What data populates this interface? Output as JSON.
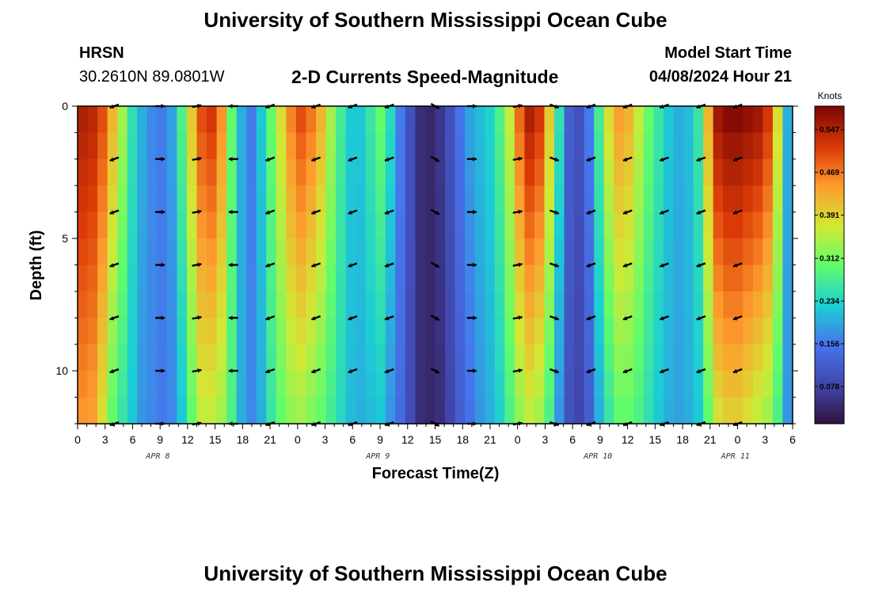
{
  "header": {
    "title": "University of Southern Mississippi Ocean Cube",
    "station": "HRSN",
    "coords": "30.2610N  89.0801W",
    "subtitle": "2-D Currents Speed-Magnitude",
    "model_label": "Model Start Time",
    "model_time": "04/08/2024 Hour 21"
  },
  "footer": {
    "title": "University of Southern Mississippi Ocean Cube"
  },
  "chart_data": {
    "type": "heatmap",
    "title": "2-D Currents Speed-Magnitude",
    "xlabel": "Forecast Time(Z)",
    "ylabel": "Depth (ft)",
    "ylim": [
      0,
      12
    ],
    "y_ticks": [
      0,
      5,
      10
    ],
    "x_tick_labels": [
      "0",
      "3",
      "6",
      "9",
      "12",
      "15",
      "18",
      "21",
      "0",
      "3",
      "6",
      "9",
      "12",
      "15",
      "18",
      "21",
      "0",
      "3",
      "6",
      "9",
      "12",
      "15",
      "18",
      "21",
      "0",
      "3",
      "6"
    ],
    "date_labels": [
      {
        "label": "APR 8",
        "hour": 6
      },
      {
        "label": "APR 9",
        "hour": 30
      },
      {
        "label": "APR 10",
        "hour": 54
      },
      {
        "label": "APR 11",
        "hour": 69
      }
    ],
    "colorbar": {
      "label": "Knots",
      "ticks": [
        "0.547",
        "0.469",
        "0.391",
        "0.312",
        "0.234",
        "0.156",
        "0.078"
      ],
      "tick_values": [
        0.547,
        0.469,
        0.391,
        0.312,
        0.234,
        0.156,
        0.078
      ],
      "range": [
        0.01,
        0.59
      ]
    },
    "surface_speed": [
      0.55,
      0.54,
      0.5,
      0.42,
      0.34,
      0.25,
      0.2,
      0.17,
      0.16,
      0.19,
      0.28,
      0.4,
      0.5,
      0.52,
      0.45,
      0.3,
      0.2,
      0.16,
      0.22,
      0.3,
      0.38,
      0.46,
      0.5,
      0.47,
      0.42,
      0.34,
      0.27,
      0.22,
      0.22,
      0.26,
      0.3,
      0.24,
      0.16,
      0.1,
      0.05,
      0.04,
      0.06,
      0.1,
      0.15,
      0.19,
      0.21,
      0.23,
      0.28,
      0.36,
      0.48,
      0.55,
      0.52,
      0.4,
      0.25,
      0.12,
      0.1,
      0.16,
      0.27,
      0.38,
      0.44,
      0.42,
      0.36,
      0.3,
      0.26,
      0.22,
      0.2,
      0.21,
      0.26,
      0.42,
      0.56,
      0.58,
      0.58,
      0.57,
      0.56,
      0.52,
      0.38,
      0.2
    ],
    "bottom_speed": [
      0.45,
      0.44,
      0.38,
      0.3,
      0.26,
      0.22,
      0.18,
      0.17,
      0.16,
      0.17,
      0.22,
      0.3,
      0.36,
      0.36,
      0.34,
      0.28,
      0.2,
      0.17,
      0.2,
      0.26,
      0.3,
      0.33,
      0.34,
      0.32,
      0.3,
      0.27,
      0.24,
      0.21,
      0.2,
      0.21,
      0.22,
      0.18,
      0.14,
      0.09,
      0.05,
      0.04,
      0.05,
      0.08,
      0.12,
      0.15,
      0.18,
      0.2,
      0.23,
      0.28,
      0.33,
      0.36,
      0.34,
      0.28,
      0.18,
      0.1,
      0.08,
      0.12,
      0.2,
      0.26,
      0.3,
      0.3,
      0.28,
      0.25,
      0.22,
      0.2,
      0.19,
      0.2,
      0.22,
      0.3,
      0.38,
      0.4,
      0.4,
      0.38,
      0.36,
      0.34,
      0.28,
      0.18
    ],
    "vectors": {
      "hours": [
        4,
        9,
        13,
        17,
        21,
        26,
        30,
        34,
        39,
        43,
        48,
        52,
        56,
        60,
        64,
        68,
        72
      ],
      "depths": [
        0,
        2,
        4,
        6,
        8,
        10,
        12
      ],
      "angle_deg": [
        200,
        0,
        10,
        180,
        200,
        200,
        200,
        200,
        330,
        0,
        10,
        340,
        200,
        200,
        200,
        200,
        200
      ]
    }
  }
}
